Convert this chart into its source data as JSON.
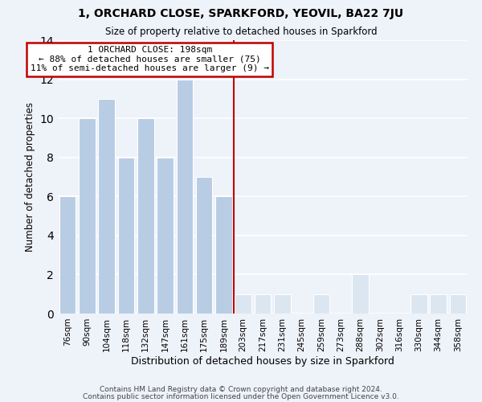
{
  "title": "1, ORCHARD CLOSE, SPARKFORD, YEOVIL, BA22 7JU",
  "subtitle": "Size of property relative to detached houses in Sparkford",
  "xlabel": "Distribution of detached houses by size in Sparkford",
  "ylabel": "Number of detached properties",
  "bar_labels": [
    "76sqm",
    "90sqm",
    "104sqm",
    "118sqm",
    "132sqm",
    "147sqm",
    "161sqm",
    "175sqm",
    "189sqm",
    "203sqm",
    "217sqm",
    "231sqm",
    "245sqm",
    "259sqm",
    "273sqm",
    "288sqm",
    "302sqm",
    "316sqm",
    "330sqm",
    "344sqm",
    "358sqm"
  ],
  "bar_values": [
    6,
    10,
    11,
    8,
    10,
    8,
    12,
    7,
    6,
    1,
    1,
    1,
    0,
    1,
    0,
    2,
    0,
    0,
    1,
    1,
    1
  ],
  "bar_color_left": "#b8cce4",
  "bar_color_right": "#dce6f1",
  "property_line_x": 9,
  "ylim": [
    0,
    14
  ],
  "yticks": [
    0,
    2,
    4,
    6,
    8,
    10,
    12,
    14
  ],
  "annotation_title": "1 ORCHARD CLOSE: 198sqm",
  "annotation_line1": "← 88% of detached houses are smaller (75)",
  "annotation_line2": "11% of semi-detached houses are larger (9) →",
  "footer_line1": "Contains HM Land Registry data © Crown copyright and database right 2024.",
  "footer_line2": "Contains public sector information licensed under the Open Government Licence v3.0.",
  "background_color": "#eef2f9",
  "grid_color": "#ffffff",
  "annotation_box_color": "#ffffff",
  "annotation_border_color": "#c00000",
  "property_line_color": "#c00000"
}
